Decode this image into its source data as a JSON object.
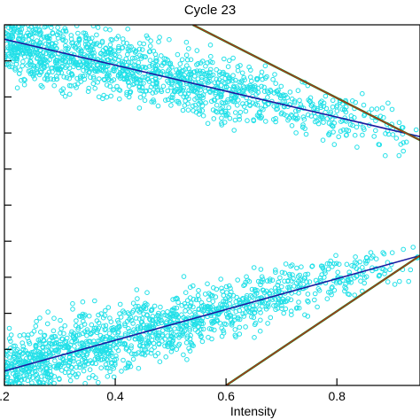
{
  "chart_data": {
    "type": "scatter",
    "title": "Cycle 23",
    "xlabel": "Intensity",
    "ylabel": "",
    "xlim": [
      0.2,
      0.95
    ],
    "ylim": [
      0,
      1
    ],
    "x_ticks": [
      0.2,
      0.4,
      0.6,
      0.8
    ],
    "x_tick_labels": [
      ".2",
      "0.4",
      "0.6",
      "0.8"
    ],
    "y_ticks": [
      0.0,
      0.1,
      0.2,
      0.3,
      0.4,
      0.5,
      0.6,
      0.7,
      0.8,
      0.9,
      1.0
    ],
    "grid": false,
    "colors": {
      "points": "#22e0e8",
      "fit_line": "#1a1aa0",
      "red_line": "#c81e1e",
      "green_line": "#1e8c1e",
      "axes": "#000000"
    },
    "clusters": [
      {
        "name": "",
        "x_range": [
          0.2,
          0.95
        ],
        "center_y_at_x": [
          [
            0.2,
            0.96
          ],
          [
            0.95,
            0.69
          ]
        ],
        "spread_at_x": [
          [
            0.2,
            0.05
          ],
          [
            0.95,
            0.03
          ]
        ]
      },
      {
        "name": "",
        "x_range": [
          0.2,
          0.95
        ],
        "center_y_at_x": [
          [
            0.2,
            0.04
          ],
          [
            0.95,
            0.36
          ]
        ],
        "spread_at_x": [
          [
            0.2,
            0.05
          ],
          [
            0.95,
            0.03
          ]
        ]
      }
    ],
    "lines": [
      {
        "name": "",
        "color": "blue",
        "x": [
          0.2,
          0.95
        ],
        "y": [
          0.96,
          0.69
        ]
      },
      {
        "name": "",
        "color": "blue",
        "x": [
          0.2,
          0.95
        ],
        "y": [
          0.04,
          0.36
        ]
      },
      {
        "name": "",
        "color": "red-green",
        "x": [
          0.54,
          0.95
        ],
        "y": [
          1.0,
          0.68
        ]
      },
      {
        "name": "",
        "color": "red-green",
        "x": [
          0.6,
          0.95
        ],
        "y": [
          0.0,
          0.36
        ]
      }
    ]
  }
}
